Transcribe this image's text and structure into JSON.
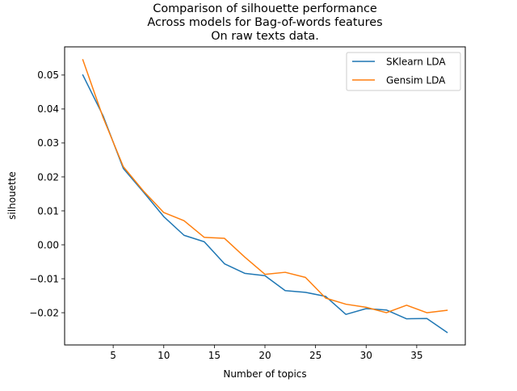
{
  "chart_data": {
    "type": "line",
    "title_lines": [
      "Comparison of silhouette performance",
      "Across models for Bag-of-words features",
      "On raw texts data."
    ],
    "xlabel": "Number of topics",
    "ylabel": "silhouette",
    "xlim": [
      0.2,
      39.8
    ],
    "ylim": [
      -0.0295,
      0.0583
    ],
    "x_ticks": [
      5,
      10,
      15,
      20,
      25,
      30,
      35
    ],
    "x_tick_labels": [
      "5",
      "10",
      "15",
      "20",
      "25",
      "30",
      "35"
    ],
    "y_ticks": [
      -0.02,
      -0.01,
      0.0,
      0.01,
      0.02,
      0.03,
      0.04,
      0.05
    ],
    "y_tick_labels": [
      "−0.02",
      "−0.01",
      "0.00",
      "0.01",
      "0.02",
      "0.03",
      "0.04",
      "0.05"
    ],
    "grid": false,
    "legend_position": "top-right",
    "x": [
      2,
      4,
      6,
      8,
      10,
      12,
      14,
      16,
      18,
      20,
      22,
      24,
      26,
      28,
      30,
      32,
      34,
      36,
      38
    ],
    "series": [
      {
        "name": "SKlearn LDA",
        "color": "#1f77b4",
        "values": [
          0.05,
          0.038,
          0.0225,
          0.0155,
          0.0083,
          0.0028,
          0.0009,
          -0.0056,
          -0.0084,
          -0.0091,
          -0.0135,
          -0.014,
          -0.0152,
          -0.0205,
          -0.0188,
          -0.0192,
          -0.0218,
          -0.0217,
          -0.0258
        ]
      },
      {
        "name": "Gensim LDA",
        "color": "#ff7f0e",
        "values": [
          0.0545,
          0.0375,
          0.023,
          0.0158,
          0.0095,
          0.0071,
          0.0022,
          0.0019,
          -0.0036,
          -0.0087,
          -0.0081,
          -0.0096,
          -0.0157,
          -0.0175,
          -0.0184,
          -0.02,
          -0.0178,
          -0.02,
          -0.0193
        ]
      }
    ]
  }
}
